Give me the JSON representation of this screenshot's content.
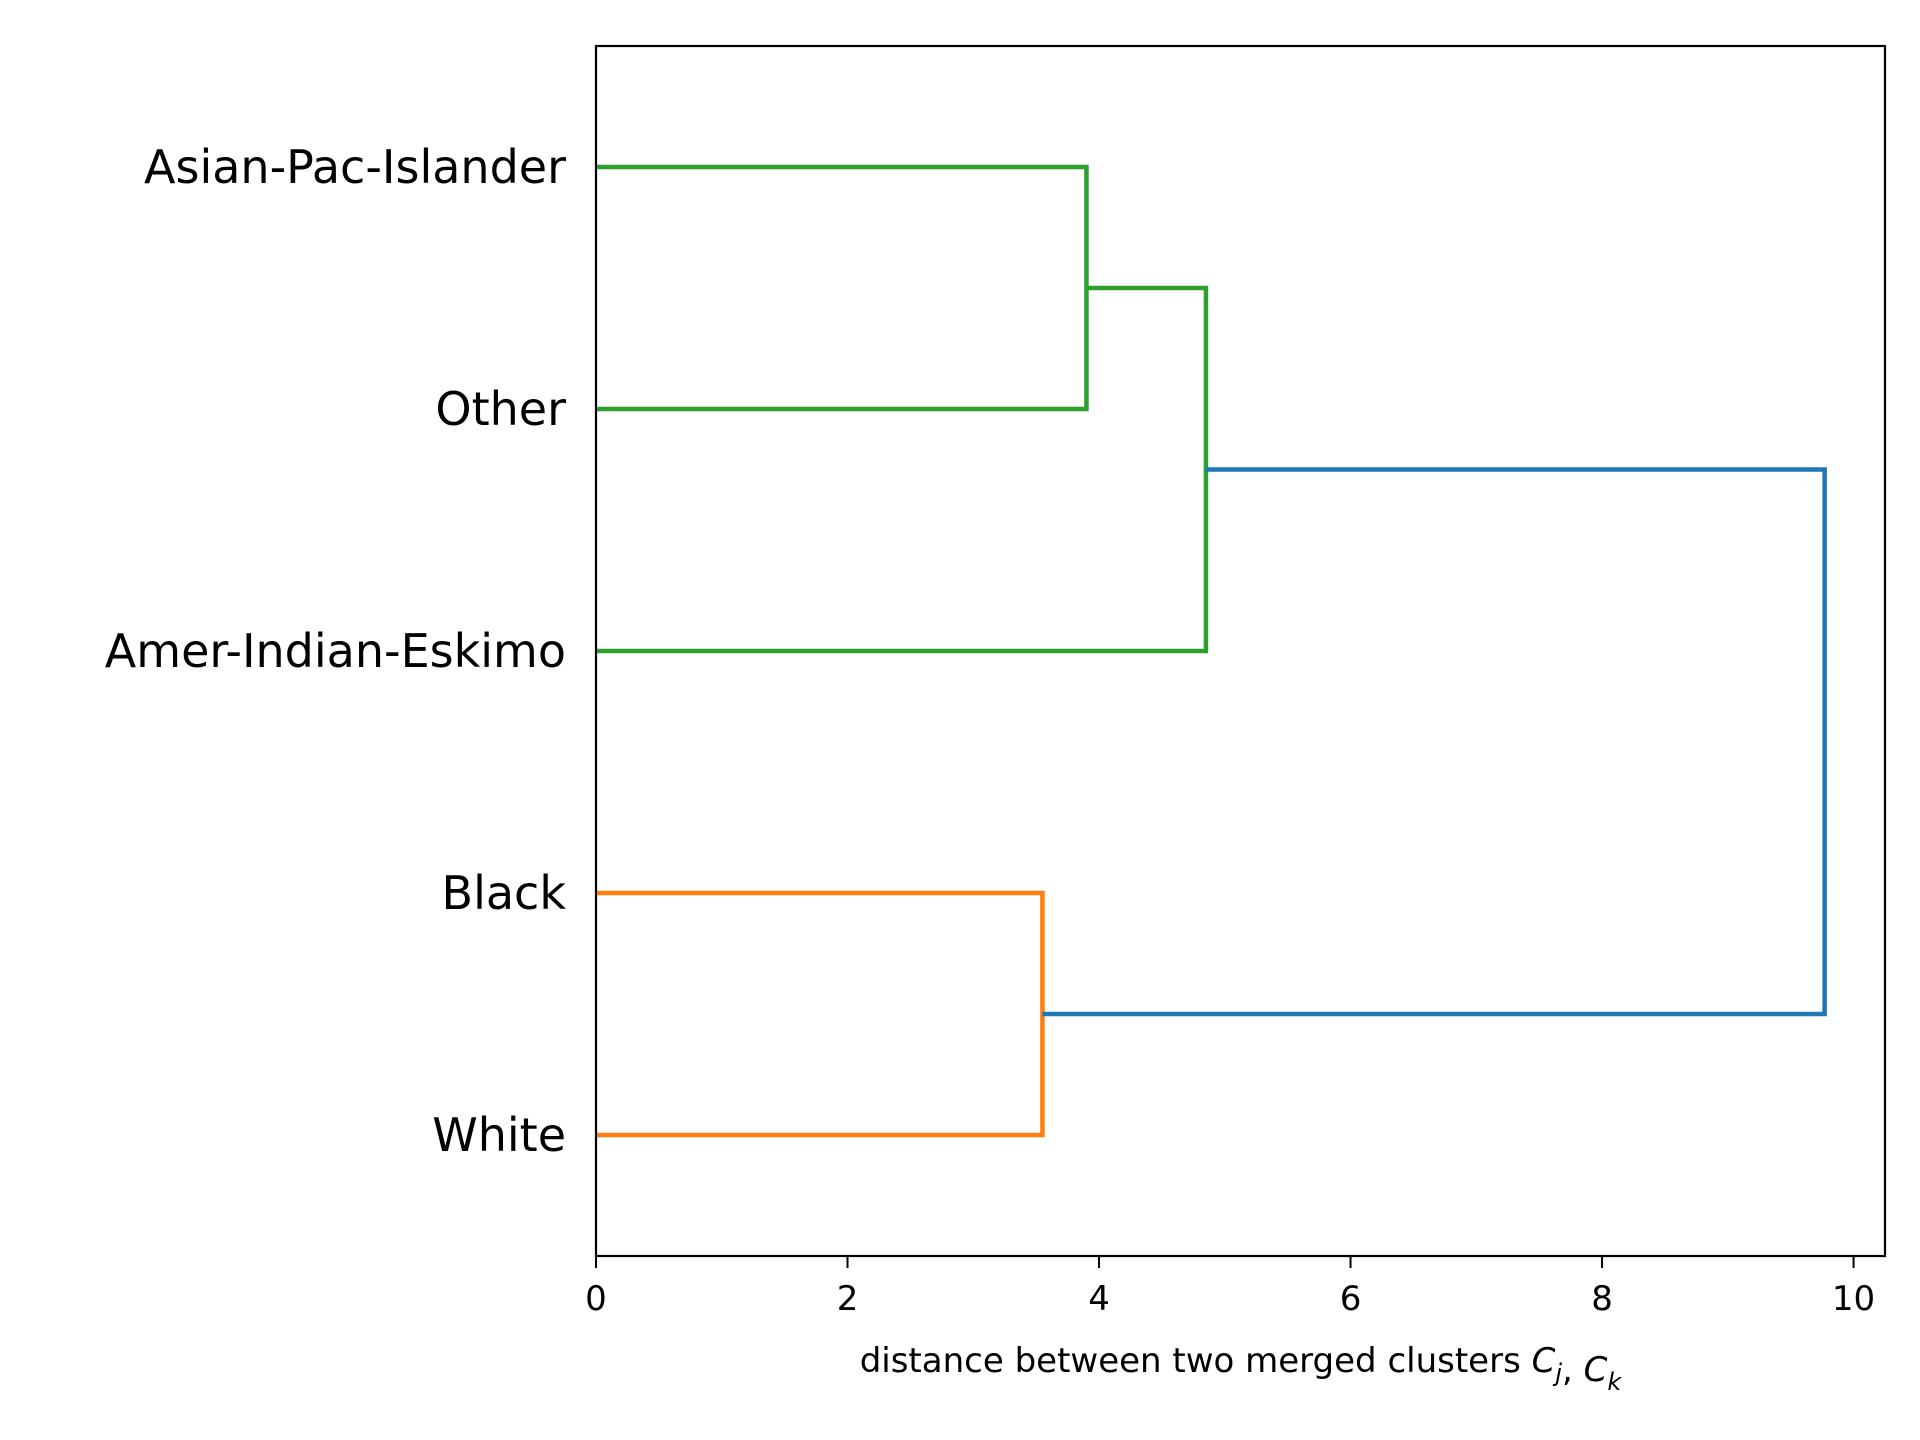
{
  "chart_data": {
    "type": "dendrogram",
    "orientation": "horizontal",
    "title": "",
    "xlabel": {
      "text": "distance between two merged clusters ",
      "math": [
        {
          "base": "C",
          "sub": "j"
        },
        {
          "sep": ", "
        },
        {
          "base": "C",
          "sub": "k"
        }
      ]
    },
    "ylabel": "",
    "xlim": [
      0,
      10.25
    ],
    "xticks": [
      0,
      2,
      4,
      6,
      8,
      10
    ],
    "leaves": [
      "Asian-Pac-Islander",
      "Other",
      "Amer-Indian-Eskimo",
      "Black",
      "White"
    ],
    "merges": [
      {
        "id": "m1",
        "left": "Asian-Pac-Islander",
        "right": "Other",
        "distance": 3.9,
        "color": "#2ca02c"
      },
      {
        "id": "m2",
        "left": "m1",
        "right": "Amer-Indian-Eskimo",
        "distance": 4.85,
        "color": "#2ca02c"
      },
      {
        "id": "m3",
        "left": "Black",
        "right": "White",
        "distance": 3.55,
        "color": "#ff7f0e"
      },
      {
        "id": "m4",
        "left": "m2",
        "right": "m3",
        "distance": 9.77,
        "color": "#1f77b4"
      }
    ],
    "grid": false,
    "legend": "none"
  }
}
